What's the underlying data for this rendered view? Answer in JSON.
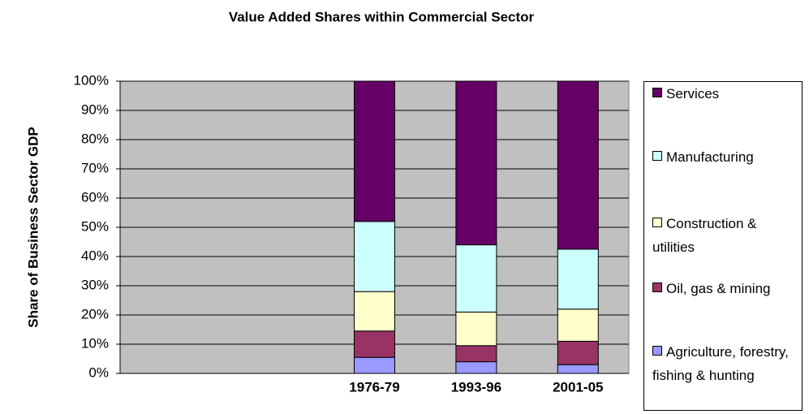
{
  "chart_data": {
    "type": "bar",
    "stacked": true,
    "title": "Value Added Shares within Commercial Sector",
    "y_label": "Share of Business Sector GDP",
    "categories": [
      null,
      null,
      "1976-79",
      "1993-96",
      "2001-05"
    ],
    "series": [
      {
        "name": "Agriculture, forestry, fishing & hunting",
        "color": "#9999ff",
        "values": [
          null,
          null,
          5.5,
          4,
          3
        ]
      },
      {
        "name": "Oil, gas & mining",
        "color": "#993366",
        "values": [
          null,
          null,
          9,
          5.5,
          8
        ]
      },
      {
        "name": "Construction & utilities",
        "color": "#ffffcc",
        "values": [
          null,
          null,
          13.5,
          11.5,
          11
        ]
      },
      {
        "name": "Manufacturing",
        "color": "#ccffff",
        "values": [
          null,
          null,
          24,
          23,
          20.5
        ]
      },
      {
        "name": "Services",
        "color": "#660066",
        "values": [
          null,
          null,
          48,
          56,
          57.5
        ]
      }
    ],
    "ylim": [
      0,
      100
    ],
    "yticks": [
      {
        "value": 0,
        "label": "0%"
      },
      {
        "value": 10,
        "label": "10%"
      },
      {
        "value": 20,
        "label": "20%"
      },
      {
        "value": 30,
        "label": "30%"
      },
      {
        "value": 40,
        "label": "40%"
      },
      {
        "value": 50,
        "label": "50%"
      },
      {
        "value": 60,
        "label": "60%"
      },
      {
        "value": 70,
        "label": "70%"
      },
      {
        "value": 80,
        "label": "80%"
      },
      {
        "value": 90,
        "label": "90%"
      },
      {
        "value": 100,
        "label": "100%"
      }
    ],
    "grid": true,
    "plot_background": "#c0c0c0",
    "legend": "right"
  }
}
